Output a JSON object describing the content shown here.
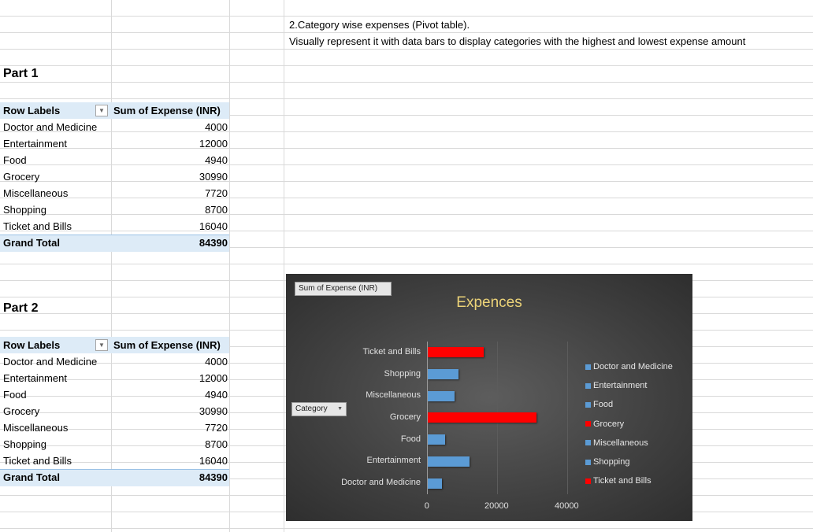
{
  "notes": {
    "line1": "2.Category wise expenses (Pivot table).",
    "line2": "Visually represent it with data bars to display categories with the highest and lowest expense amount"
  },
  "part1": {
    "title": "Part 1",
    "header_row_labels": "Row Labels",
    "header_sum": "Sum of Expense (INR)",
    "rows": [
      {
        "label": "Doctor and Medicine",
        "value": "4000"
      },
      {
        "label": "Entertainment",
        "value": "12000"
      },
      {
        "label": "Food",
        "value": "4940"
      },
      {
        "label": "Grocery",
        "value": "30990"
      },
      {
        "label": "Miscellaneous",
        "value": "7720"
      },
      {
        "label": "Shopping",
        "value": "8700"
      },
      {
        "label": "Ticket and Bills",
        "value": "16040"
      }
    ],
    "total_label": "Grand Total",
    "total_value": "84390"
  },
  "part2": {
    "title": "Part 2",
    "header_row_labels": "Row Labels",
    "header_sum": "Sum of Expense (INR)",
    "rows": [
      {
        "label": "Doctor and Medicine",
        "value": "4000"
      },
      {
        "label": "Entertainment",
        "value": "12000"
      },
      {
        "label": "Food",
        "value": "4940"
      },
      {
        "label": "Grocery",
        "value": "30990"
      },
      {
        "label": "Miscellaneous",
        "value": "7720"
      },
      {
        "label": "Shopping",
        "value": "8700"
      },
      {
        "label": "Ticket and Bills",
        "value": "16040"
      }
    ],
    "total_label": "Grand Total",
    "total_value": "84390"
  },
  "chart_buttons": {
    "sum_field": "Sum of Expense (INR)",
    "category_field": "Category"
  },
  "colors": {
    "highlight": "#ff0000",
    "normal": "#5b9bd5",
    "title": "#ecd378"
  },
  "chart_data": {
    "type": "bar",
    "orientation": "horizontal",
    "title": "Expences",
    "categories": [
      "Doctor and Medicine",
      "Entertainment",
      "Food",
      "Grocery",
      "Miscellaneous",
      "Shopping",
      "Ticket and Bills"
    ],
    "values": [
      4000,
      12000,
      4940,
      30990,
      7720,
      8700,
      16040
    ],
    "highlighted": [
      "Grocery",
      "Ticket and Bills"
    ],
    "xlim": [
      0,
      40000
    ],
    "xticks": [
      "0",
      "20000",
      "40000"
    ],
    "legend_position": "right",
    "grid": true
  }
}
